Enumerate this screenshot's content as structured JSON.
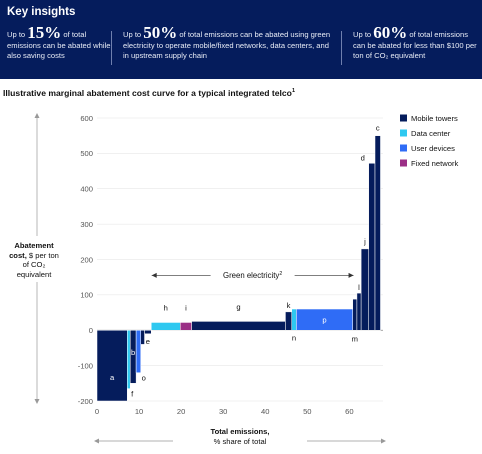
{
  "header": {
    "title": "Key insights",
    "insights": [
      {
        "pre": "Up to ",
        "big": "15%",
        "post": " of total emissions can be abated while also saving costs"
      },
      {
        "pre": "Up to ",
        "big": "50%",
        "post": " of total emissions can be abated using green electricity to operate mobile/fixed networks, data centers, and in upstream supply chain"
      },
      {
        "pre": "Up to ",
        "big": "60%",
        "post": " of total emissions can be abated for less than $100 per ton of CO₂ equivalent"
      }
    ]
  },
  "chart_data": {
    "type": "bar",
    "title": "Illustrative marginal abatement cost curve for a typical integrated telco",
    "title_note": "1",
    "ylabel_bold": "Abatement cost,",
    "ylabel_rest": " $ per ton of CO₂ equivalent",
    "xlabel_bold": "Total emissions,",
    "xlabel_rest": "% share of total",
    "xlim": [
      0,
      68
    ],
    "ylim": [
      -200,
      600
    ],
    "xticks": [
      0,
      10,
      20,
      30,
      40,
      50,
      60
    ],
    "yticks": [
      -200,
      -100,
      0,
      100,
      200,
      300,
      400,
      500,
      600
    ],
    "grid": true,
    "legend_position": "top-right",
    "categories": [
      {
        "name": "Mobile towers",
        "color": "#051c5c"
      },
      {
        "name": "Data center",
        "color": "#2ec8f0"
      },
      {
        "name": "User devices",
        "color": "#2f6cf6"
      },
      {
        "name": "Fixed network",
        "color": "#9b2f86"
      }
    ],
    "bars": [
      {
        "label": "a",
        "x0": 0.0,
        "x1": 7.2,
        "y": -200,
        "category": "Mobile towers"
      },
      {
        "label": "f",
        "x0": 7.2,
        "x1": 7.9,
        "y": -165,
        "category": "Data center"
      },
      {
        "label": "b",
        "x0": 7.9,
        "x1": 9.3,
        "y": -150,
        "category": "Mobile towers"
      },
      {
        "label": "o",
        "x0": 9.3,
        "x1": 10.4,
        "y": -120,
        "category": "User devices"
      },
      {
        "label": "",
        "x0": 10.4,
        "x1": 11.3,
        "y": -40,
        "category": "Mobile towers"
      },
      {
        "label": "e",
        "x0": 11.3,
        "x1": 12.9,
        "y": -10,
        "category": "Mobile towers"
      },
      {
        "label": "h",
        "x0": 12.9,
        "x1": 19.8,
        "y": 22,
        "category": "Data center"
      },
      {
        "label": "i",
        "x0": 19.8,
        "x1": 22.5,
        "y": 22,
        "category": "Fixed network"
      },
      {
        "label": "g",
        "x0": 22.5,
        "x1": 44.8,
        "y": 25,
        "category": "Mobile towers"
      },
      {
        "label": "k",
        "x0": 44.8,
        "x1": 46.3,
        "y": 52,
        "category": "Mobile towers"
      },
      {
        "label": "n",
        "x0": 46.3,
        "x1": 47.4,
        "y": 60,
        "category": "Data center"
      },
      {
        "label": "p",
        "x0": 47.4,
        "x1": 60.8,
        "y": 60,
        "category": "User devices"
      },
      {
        "label": "m",
        "x0": 60.8,
        "x1": 61.8,
        "y": 88,
        "category": "Mobile towers"
      },
      {
        "label": "l",
        "x0": 61.8,
        "x1": 62.8,
        "y": 105,
        "category": "Mobile towers"
      },
      {
        "label": "j",
        "x0": 62.8,
        "x1": 64.6,
        "y": 230,
        "category": "Mobile towers"
      },
      {
        "label": "d",
        "x0": 64.6,
        "x1": 66.1,
        "y": 472,
        "category": "Mobile towers"
      },
      {
        "label": "c",
        "x0": 66.1,
        "x1": 67.4,
        "y": 550,
        "category": "Mobile towers"
      }
    ],
    "annotation": {
      "text": "Green electricity",
      "note": "2",
      "x0": 13,
      "x1": 61,
      "y": 155
    }
  }
}
